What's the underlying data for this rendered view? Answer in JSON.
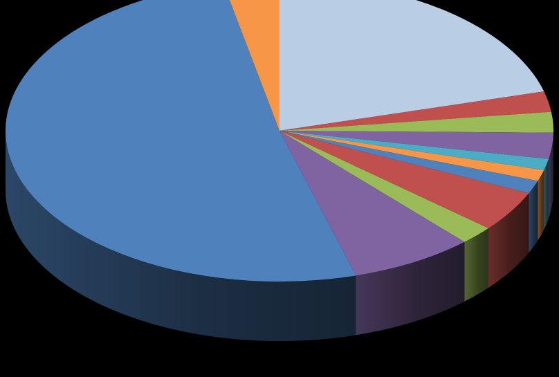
{
  "chart_data": {
    "type": "pie",
    "style": "3d",
    "title": "",
    "legend": "none",
    "data_labels": "none",
    "slices": [
      {
        "value": 20.8,
        "color": "#B9CDE5"
      },
      {
        "value": 2.2,
        "color": "#C0504D"
      },
      {
        "value": 2.2,
        "color": "#9BBB59"
      },
      {
        "value": 2.8,
        "color": "#8064A2"
      },
      {
        "value": 1.2,
        "color": "#4BACC6"
      },
      {
        "value": 1.2,
        "color": "#F79646"
      },
      {
        "value": 1.4,
        "color": "#4F81BD"
      },
      {
        "value": 4.4,
        "color": "#C0504D"
      },
      {
        "value": 2.0,
        "color": "#9BBB59"
      },
      {
        "value": 7.3,
        "color": "#8064A2"
      },
      {
        "value": 51.2,
        "color": "#4F81BD"
      },
      {
        "value": 3.3,
        "color": "#F79646"
      }
    ]
  }
}
